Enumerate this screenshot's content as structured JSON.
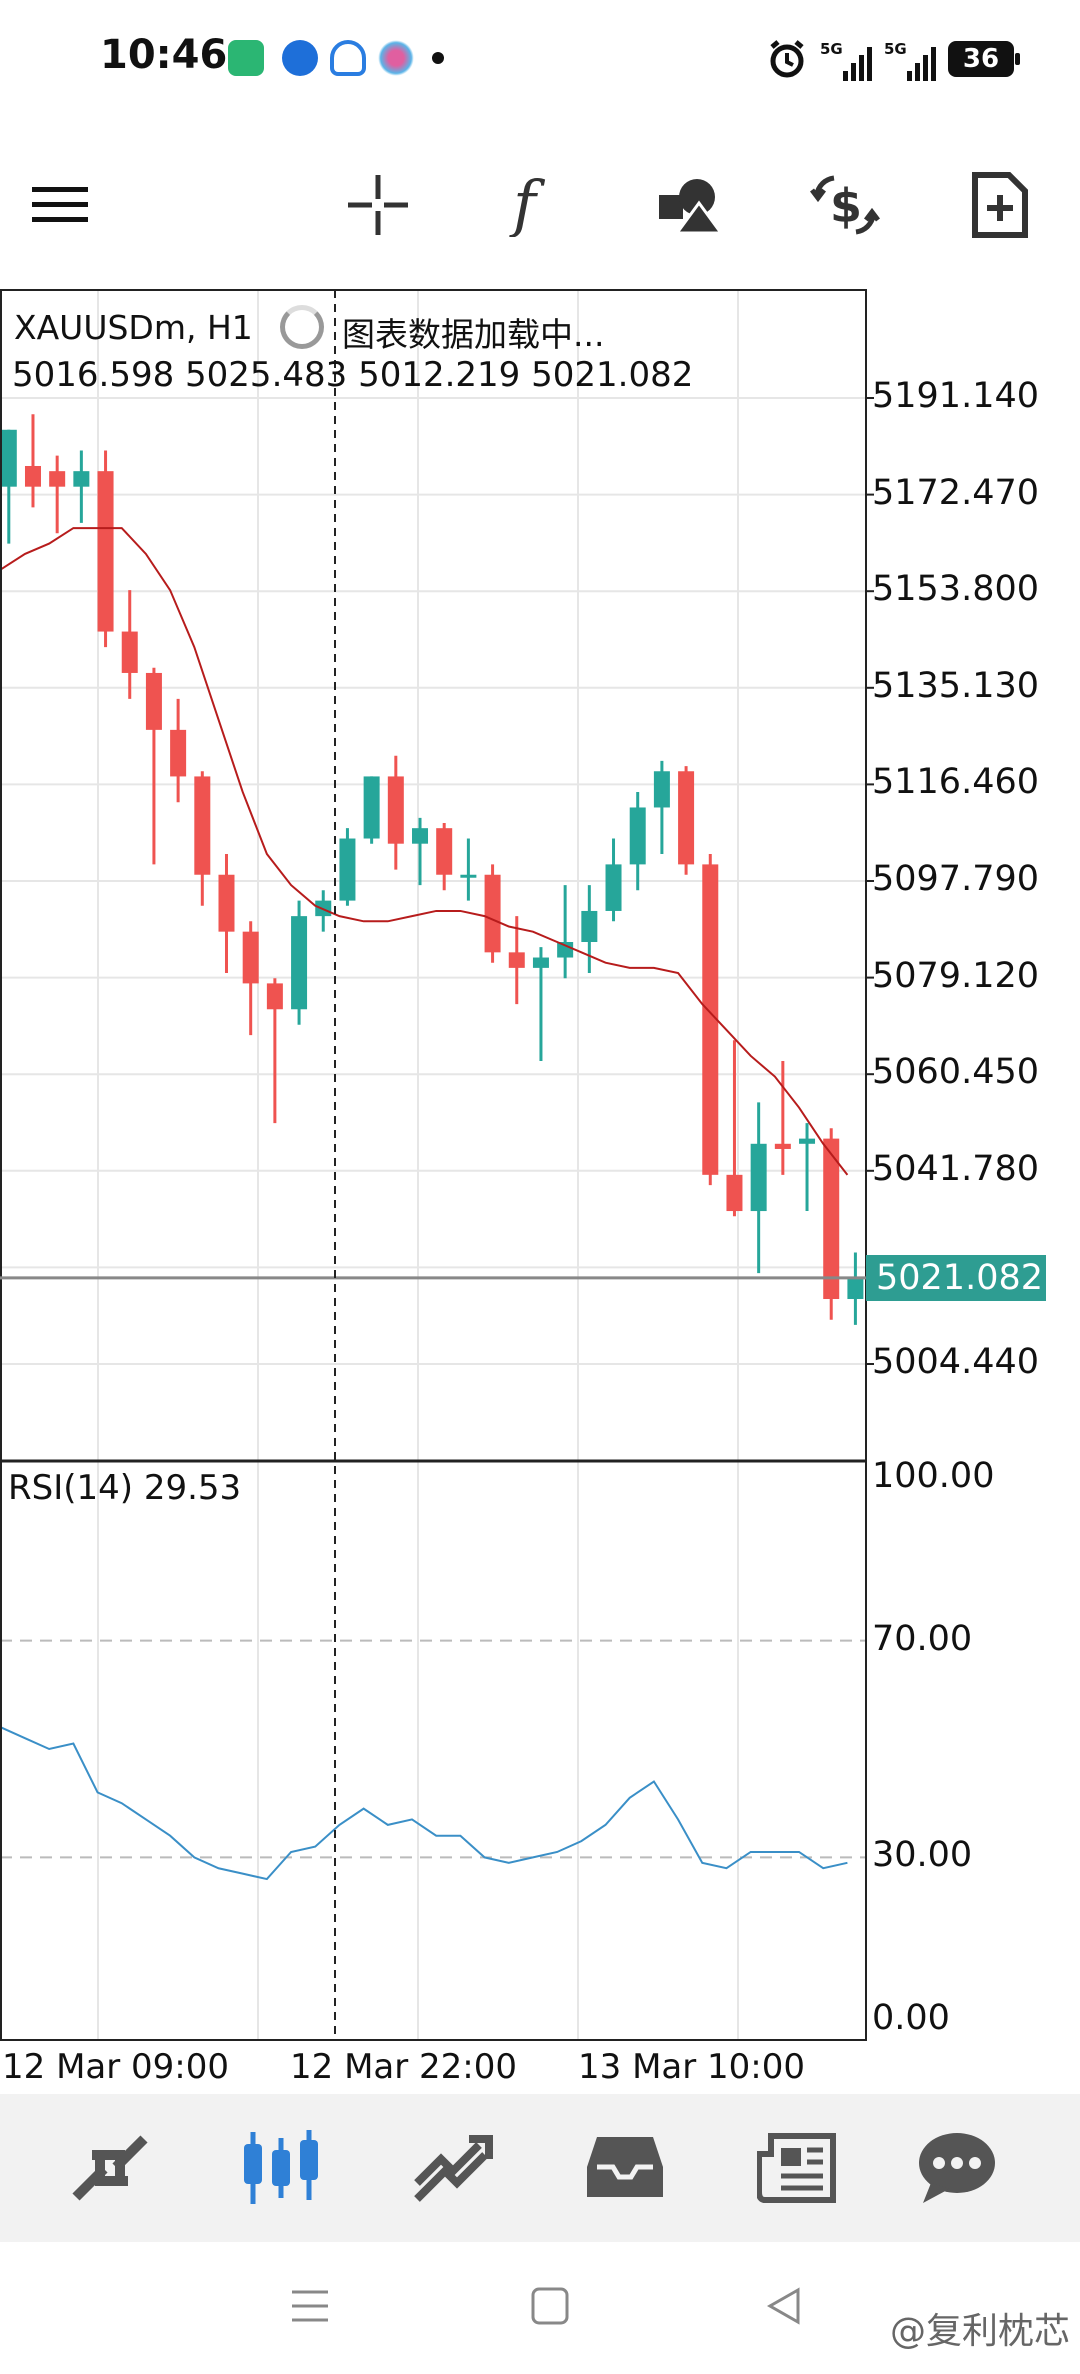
{
  "status_bar": {
    "time": "10:46",
    "battery": "36",
    "signal_1": "5G",
    "signal_2": "5G",
    "icons": [
      "app-icon-green",
      "app-icon-blue",
      "app-icon-cloud",
      "app-icon-flower",
      "alarm-icon",
      "signal-icon",
      "battery-icon"
    ]
  },
  "toolbar": {
    "items": [
      "menu-icon",
      "crosshair-icon",
      "function-icon",
      "objects-icon",
      "trade-icon",
      "new-order-icon"
    ]
  },
  "chart": {
    "symbol": "XAUUSDm, H1",
    "loading_text": "图表数据加载中...",
    "ohlc": "5016.598 5025.483 5012.219 5021.082",
    "current_price": "5021.082",
    "price_scale": [
      "5191.140",
      "5172.470",
      "5153.800",
      "5135.130",
      "5116.460",
      "5097.790",
      "5079.120",
      "5060.450",
      "5041.780",
      "5004.440"
    ],
    "rsi_title": "RSI(14) 29.53",
    "rsi_scale": [
      "100.00",
      "70.00",
      "30.00",
      "0.00"
    ],
    "time_labels": [
      "12 Mar 09:00",
      "12 Mar 22:00",
      "13 Mar 10:00"
    ],
    "colors": {
      "bull": "#26a69a",
      "bear": "#ef5350",
      "ma": "#b71c1c",
      "rsi": "#3a8fc7",
      "grid": "#e6e6e6"
    }
  },
  "chart_data": {
    "type": "candlestick",
    "indicator_ma": "moving average (red line)",
    "indicator_rsi": "RSI(14)",
    "y_range": [
      5000,
      5200
    ],
    "rsi_range": [
      0,
      100
    ],
    "candles": [
      {
        "o": 5174,
        "h": 5185,
        "l": 5163,
        "c": 5185
      },
      {
        "o": 5178,
        "h": 5188,
        "l": 5170,
        "c": 5174
      },
      {
        "o": 5177,
        "h": 5180,
        "l": 5165,
        "c": 5174
      },
      {
        "o": 5174,
        "h": 5181,
        "l": 5167,
        "c": 5177
      },
      {
        "o": 5177,
        "h": 5181,
        "l": 5143,
        "c": 5146
      },
      {
        "o": 5146,
        "h": 5154,
        "l": 5133,
        "c": 5138
      },
      {
        "o": 5138,
        "h": 5139,
        "l": 5101,
        "c": 5127
      },
      {
        "o": 5127,
        "h": 5133,
        "l": 5113,
        "c": 5118
      },
      {
        "o": 5118,
        "h": 5119,
        "l": 5093,
        "c": 5099
      },
      {
        "o": 5099,
        "h": 5103,
        "l": 5080,
        "c": 5088
      },
      {
        "o": 5088,
        "h": 5090,
        "l": 5068,
        "c": 5078
      },
      {
        "o": 5078,
        "h": 5079,
        "l": 5051,
        "c": 5073
      },
      {
        "o": 5073,
        "h": 5094,
        "l": 5070,
        "c": 5091
      },
      {
        "o": 5091,
        "h": 5096,
        "l": 5088,
        "c": 5094
      },
      {
        "o": 5094,
        "h": 5108,
        "l": 5093,
        "c": 5106
      },
      {
        "o": 5106,
        "h": 5118,
        "l": 5105,
        "c": 5118
      },
      {
        "o": 5118,
        "h": 5122,
        "l": 5100,
        "c": 5105
      },
      {
        "o": 5105,
        "h": 5110,
        "l": 5097,
        "c": 5108
      },
      {
        "o": 5108,
        "h": 5109,
        "l": 5096,
        "c": 5099
      },
      {
        "o": 5099,
        "h": 5106,
        "l": 5094,
        "c": 5099
      },
      {
        "o": 5099,
        "h": 5101,
        "l": 5082,
        "c": 5084
      },
      {
        "o": 5084,
        "h": 5091,
        "l": 5074,
        "c": 5081
      },
      {
        "o": 5081,
        "h": 5085,
        "l": 5063,
        "c": 5083
      },
      {
        "o": 5083,
        "h": 5097,
        "l": 5079,
        "c": 5086
      },
      {
        "o": 5086,
        "h": 5097,
        "l": 5080,
        "c": 5092
      },
      {
        "o": 5092,
        "h": 5106,
        "l": 5090,
        "c": 5101
      },
      {
        "o": 5101,
        "h": 5115,
        "l": 5096,
        "c": 5112
      },
      {
        "o": 5112,
        "h": 5121,
        "l": 5103,
        "c": 5119
      },
      {
        "o": 5119,
        "h": 5120,
        "l": 5099,
        "c": 5101
      },
      {
        "o": 5101,
        "h": 5103,
        "l": 5039,
        "c": 5041
      },
      {
        "o": 5041,
        "h": 5067,
        "l": 5033,
        "c": 5034
      },
      {
        "o": 5034,
        "h": 5055,
        "l": 5022,
        "c": 5047
      },
      {
        "o": 5047,
        "h": 5063,
        "l": 5041,
        "c": 5046
      },
      {
        "o": 5047,
        "h": 5051,
        "l": 5034,
        "c": 5048
      },
      {
        "o": 5048,
        "h": 5050,
        "l": 5013,
        "c": 5017
      },
      {
        "o": 5017,
        "h": 5026,
        "l": 5012,
        "c": 5021
      }
    ],
    "ma": [
      5158,
      5161,
      5163,
      5166,
      5166,
      5166,
      5161,
      5154,
      5143,
      5129,
      5115,
      5103,
      5097,
      5093,
      5091,
      5090,
      5090,
      5091,
      5092,
      5092,
      5091,
      5089,
      5088,
      5086,
      5084,
      5082,
      5081,
      5081,
      5080,
      5074,
      5069,
      5064,
      5060,
      5054,
      5047,
      5041
    ],
    "rsi": [
      54,
      52,
      50,
      51,
      42,
      40,
      37,
      34,
      30,
      28,
      27,
      26,
      31,
      32,
      36,
      39,
      36,
      37,
      34,
      34,
      30,
      29,
      30,
      31,
      33,
      36,
      41,
      44,
      37,
      29,
      28,
      31,
      31,
      31,
      28,
      29
    ]
  },
  "bottom_nav": {
    "items": [
      "quotes-icon",
      "chart-icon",
      "trade-icon",
      "history-icon",
      "news-icon",
      "messages-icon"
    ],
    "active": "chart-icon"
  },
  "system_nav": {
    "watermark": "@复利枕芯"
  }
}
